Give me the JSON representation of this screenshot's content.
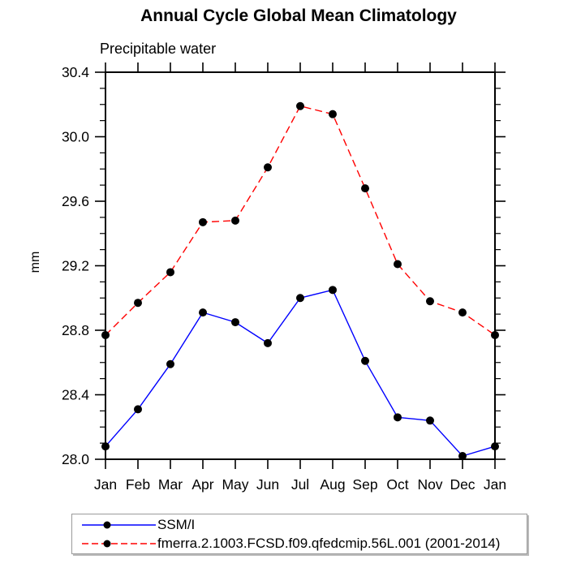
{
  "title": "Annual Cycle Global Mean Climatology",
  "chart_data": {
    "type": "line",
    "title": "Annual Cycle Global Mean Climatology",
    "subtitle": "Precipitable water",
    "ylabel": "mm",
    "xlabel": "",
    "categories": [
      "Jan",
      "Feb",
      "Mar",
      "Apr",
      "May",
      "Jun",
      "Jul",
      "Aug",
      "Sep",
      "Oct",
      "Nov",
      "Dec",
      "Jan"
    ],
    "series": [
      {
        "name": "SSM/I",
        "color": "#0000ff",
        "line_style": "solid",
        "marker": "filled-circle",
        "marker_color": "#000000",
        "values": [
          28.08,
          28.31,
          28.59,
          28.91,
          28.85,
          28.72,
          29.0,
          29.05,
          28.61,
          28.26,
          28.24,
          28.02,
          28.08
        ]
      },
      {
        "name": "fmerra.2.1003.FCSD.f09.qfedcmip.56L.001 (2001-2014)",
        "color": "#ff0000",
        "line_style": "dashed",
        "marker": "filled-circle",
        "marker_color": "#000000",
        "values": [
          28.77,
          28.97,
          29.16,
          29.47,
          29.48,
          29.81,
          30.19,
          30.14,
          29.68,
          29.21,
          28.98,
          28.91,
          28.77
        ]
      }
    ],
    "ylim": [
      28.0,
      30.4
    ],
    "ytick_major_step": 0.4,
    "ytick_minor_step": 0.1,
    "ytick_labels": [
      "28.0",
      "28.4",
      "28.8",
      "29.2",
      "29.6",
      "30.0",
      "30.4"
    ],
    "grid": false,
    "frame": "box",
    "axis_color": "#000000",
    "legend_position": "bottom-left"
  }
}
